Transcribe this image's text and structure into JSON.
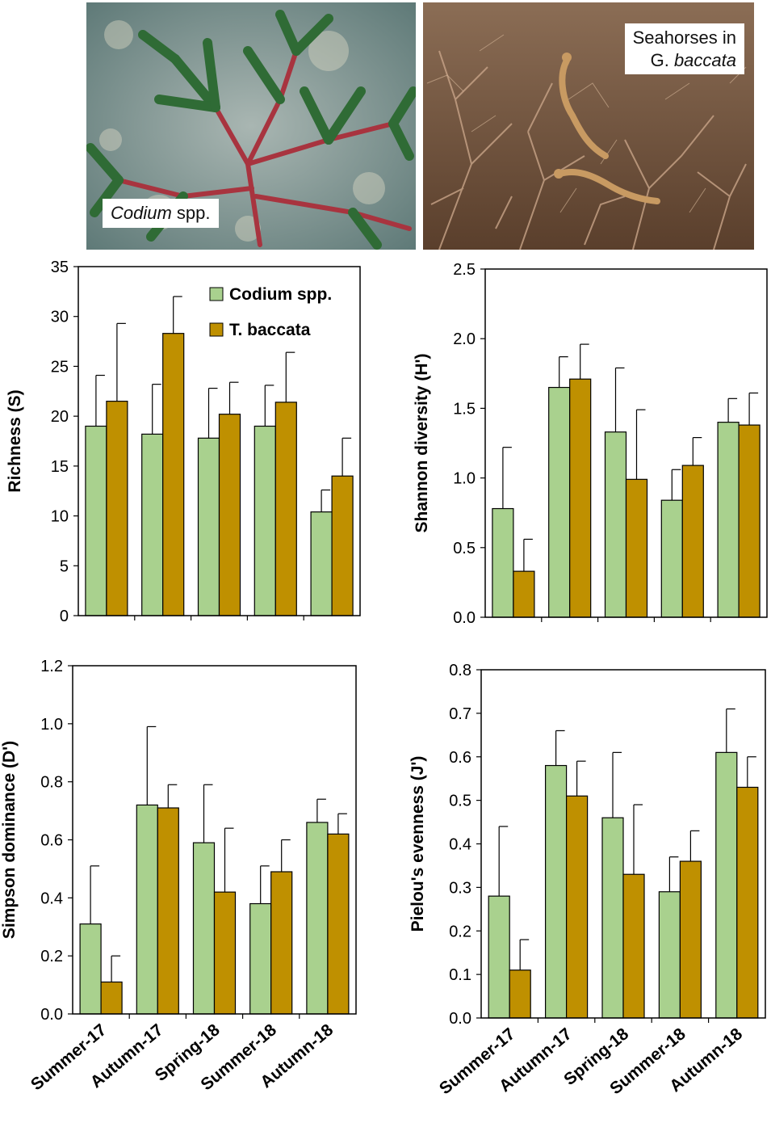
{
  "photos": {
    "left": {
      "label_italic": "Codium",
      "label_rest": " spp.",
      "colors": {
        "water": "#5f7a78",
        "algae": "#2f6b35",
        "red_stem": "#a8343f"
      }
    },
    "right": {
      "label_line1": "Seahorses in",
      "label_line2_plain": "G. ",
      "label_line2_italic": "baccata",
      "colors": {
        "water": "#6a4c35",
        "algae": "#c8a488",
        "seahorse": "#c89a62"
      }
    }
  },
  "legend": {
    "codium": "Codium spp.",
    "baccata": "T. baccata",
    "codium_color": "#a9d18e",
    "baccata_color": "#bf9000"
  },
  "chart_data": [
    {
      "id": "richness",
      "type": "bar",
      "ylabel": "Richness (S)",
      "ylim": [
        0,
        35
      ],
      "yticks": [
        "0",
        "5",
        "10",
        "15",
        "20",
        "25",
        "30",
        "35"
      ],
      "categories": [
        "Summer-17",
        "Autumn-17",
        "Spring-18",
        "Summer-18",
        "Autumn-18"
      ],
      "series": [
        {
          "name": "Codium spp.",
          "values": [
            19.0,
            18.2,
            17.8,
            19.0,
            10.4
          ],
          "errors": [
            5.1,
            5.0,
            5.0,
            4.1,
            2.2
          ]
        },
        {
          "name": "T. baccata",
          "values": [
            21.5,
            28.3,
            20.2,
            21.4,
            14.0
          ],
          "errors": [
            7.8,
            3.7,
            3.2,
            5.0,
            3.8
          ]
        }
      ],
      "show_xlabels": false,
      "legend": true
    },
    {
      "id": "shannon",
      "type": "bar",
      "ylabel": "Shannon diversity (H')",
      "ylim": [
        0,
        2.5
      ],
      "yticks": [
        "0.0",
        "0.5",
        "1.0",
        "1.5",
        "2.0",
        "2.5"
      ],
      "categories": [
        "Summer-17",
        "Autumn-17",
        "Spring-18",
        "Summer-18",
        "Autumn-18"
      ],
      "series": [
        {
          "name": "Codium spp.",
          "values": [
            0.78,
            1.65,
            1.33,
            0.84,
            1.4
          ],
          "errors": [
            0.44,
            0.22,
            0.46,
            0.22,
            0.17
          ]
        },
        {
          "name": "T. baccata",
          "values": [
            0.33,
            1.71,
            0.99,
            1.09,
            1.38
          ],
          "errors": [
            0.23,
            0.25,
            0.5,
            0.2,
            0.23
          ]
        }
      ],
      "show_xlabels": false,
      "legend": false
    },
    {
      "id": "simpson",
      "type": "bar",
      "ylabel": "Simpson dominance (D')",
      "ylim": [
        0,
        1.2
      ],
      "yticks": [
        "0.0",
        "0.2",
        "0.4",
        "0.6",
        "0.8",
        "1.0",
        "1.2"
      ],
      "categories": [
        "Summer-17",
        "Autumn-17",
        "Spring-18",
        "Summer-18",
        "Autumn-18"
      ],
      "series": [
        {
          "name": "Codium spp.",
          "values": [
            0.31,
            0.72,
            0.59,
            0.38,
            0.66
          ],
          "errors": [
            0.2,
            0.27,
            0.2,
            0.13,
            0.08
          ]
        },
        {
          "name": "T. baccata",
          "values": [
            0.11,
            0.71,
            0.42,
            0.49,
            0.62
          ],
          "errors": [
            0.09,
            0.08,
            0.22,
            0.11,
            0.07
          ]
        }
      ],
      "show_xlabels": true,
      "legend": false
    },
    {
      "id": "pielou",
      "type": "bar",
      "ylabel": "Pielou's evenness (J')",
      "ylim": [
        0,
        0.8
      ],
      "yticks": [
        "0.0",
        "0.1",
        "0.2",
        "0.3",
        "0.4",
        "0.5",
        "0.6",
        "0.7",
        "0.8"
      ],
      "categories": [
        "Summer-17",
        "Autumn-17",
        "Spring-18",
        "Summer-18",
        "Autumn-18"
      ],
      "series": [
        {
          "name": "Codium spp.",
          "values": [
            0.28,
            0.58,
            0.46,
            0.29,
            0.61
          ],
          "errors": [
            0.16,
            0.08,
            0.15,
            0.08,
            0.1
          ]
        },
        {
          "name": "T. baccata",
          "values": [
            0.11,
            0.51,
            0.33,
            0.36,
            0.53
          ],
          "errors": [
            0.07,
            0.08,
            0.16,
            0.07,
            0.07
          ]
        }
      ],
      "show_xlabels": true,
      "legend": false
    }
  ]
}
